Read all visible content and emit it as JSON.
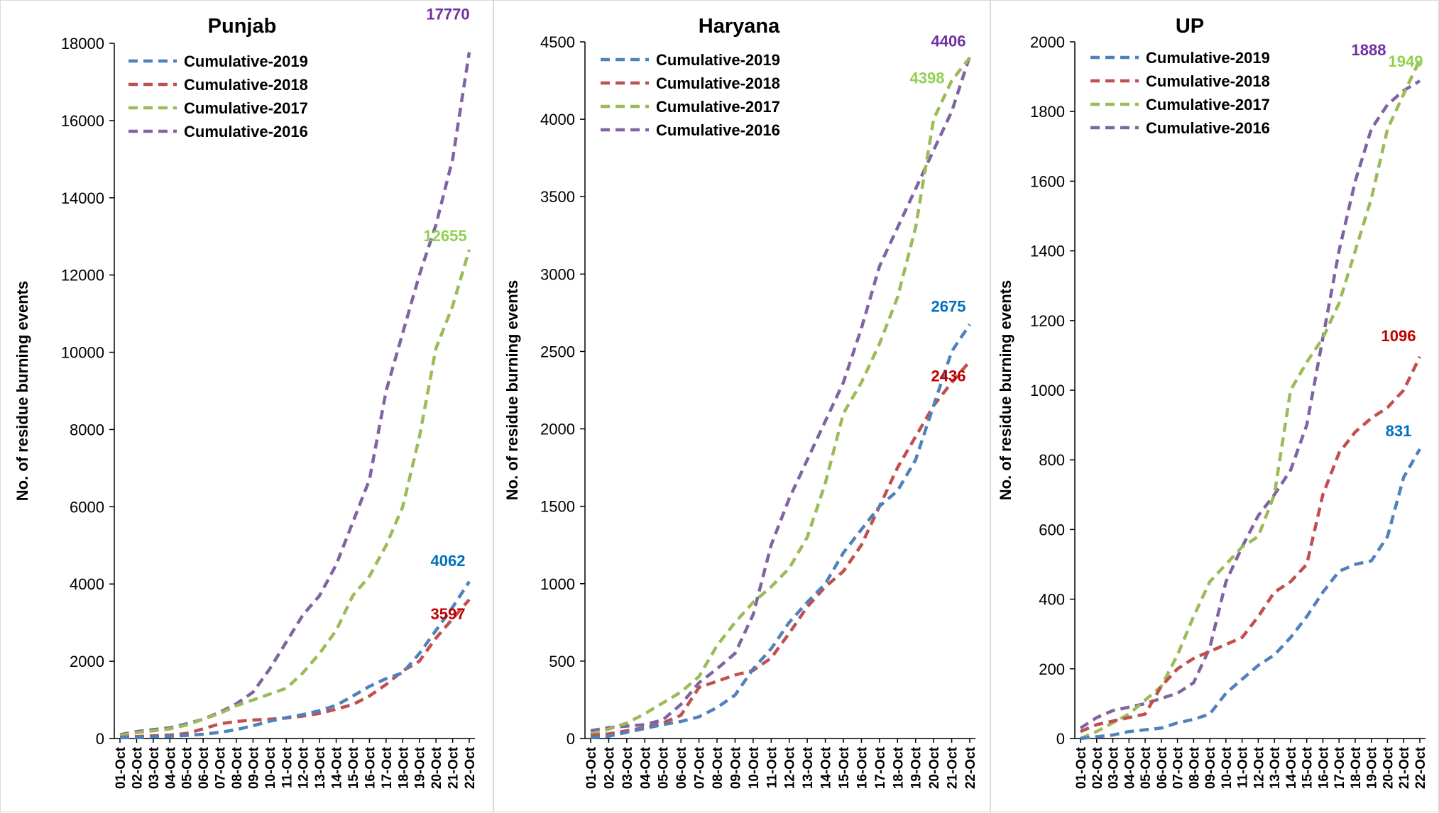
{
  "chart_data": [
    {
      "type": "line",
      "title": "Punjab",
      "ylabel": "No. of residue burning events",
      "ylim": [
        0,
        18000
      ],
      "yticks": [
        0,
        2000,
        4000,
        6000,
        8000,
        10000,
        12000,
        14000,
        16000,
        18000
      ],
      "categories": [
        "01-Oct",
        "02-Oct",
        "03-Oct",
        "04-Oct",
        "05-Oct",
        "06-Oct",
        "07-Oct",
        "08-Oct",
        "09-Oct",
        "10-Oct",
        "11-Oct",
        "12-Oct",
        "13-Oct",
        "14-Oct",
        "15-Oct",
        "16-Oct",
        "17-Oct",
        "18-Oct",
        "19-Oct",
        "20-Oct",
        "21-Oct",
        "22-Oct"
      ],
      "legend_position": "top-left",
      "series": [
        {
          "name": "Cumulative-2019",
          "color": "#4f81bd",
          "values": [
            20,
            30,
            45,
            60,
            80,
            110,
            160,
            230,
            330,
            450,
            540,
            620,
            720,
            860,
            1100,
            1350,
            1550,
            1700,
            2200,
            2800,
            3400,
            4062
          ],
          "end_label": "4062",
          "label_color": "#0070c0"
        },
        {
          "name": "Cumulative-2018",
          "color": "#c0504d",
          "values": [
            30,
            50,
            70,
            90,
            130,
            250,
            380,
            440,
            480,
            500,
            530,
            580,
            650,
            760,
            880,
            1100,
            1400,
            1750,
            2000,
            2600,
            3100,
            3597
          ],
          "end_label": "3597",
          "label_color": "#c00000"
        },
        {
          "name": "Cumulative-2017",
          "color": "#9bbb59",
          "values": [
            80,
            150,
            200,
            250,
            350,
            500,
            650,
            850,
            1000,
            1150,
            1300,
            1700,
            2200,
            2800,
            3700,
            4200,
            5000,
            6000,
            7800,
            10100,
            11200,
            12655
          ],
          "end_label": "12655",
          "label_color": "#92d050"
        },
        {
          "name": "Cumulative-2016",
          "color": "#8064a2",
          "values": [
            100,
            180,
            230,
            280,
            380,
            500,
            680,
            900,
            1200,
            1800,
            2500,
            3200,
            3700,
            4500,
            5600,
            6700,
            9000,
            10500,
            12000,
            13300,
            15000,
            17770
          ],
          "end_label": "17770",
          "label_color": "#7030a0"
        }
      ]
    },
    {
      "type": "line",
      "title": "Haryana",
      "ylabel": "No. of residue burning events",
      "ylim": [
        0,
        4500
      ],
      "yticks": [
        0,
        500,
        1000,
        1500,
        2000,
        2500,
        3000,
        3500,
        4000,
        4500
      ],
      "categories": [
        "01-Oct",
        "02-Oct",
        "03-Oct",
        "04-Oct",
        "05-Oct",
        "06-Oct",
        "07-Oct",
        "08-Oct",
        "09-Oct",
        "10-Oct",
        "11-Oct",
        "12-Oct",
        "13-Oct",
        "14-Oct",
        "15-Oct",
        "16-Oct",
        "17-Oct",
        "18-Oct",
        "19-Oct",
        "20-Oct",
        "21-Oct",
        "22-Oct"
      ],
      "legend_position": "top-left",
      "series": [
        {
          "name": "Cumulative-2019",
          "color": "#4f81bd",
          "values": [
            5,
            15,
            40,
            65,
            90,
            110,
            140,
            200,
            280,
            450,
            580,
            750,
            880,
            1000,
            1200,
            1350,
            1500,
            1600,
            1800,
            2150,
            2500,
            2675
          ],
          "end_label": "2675",
          "label_color": "#0070c0"
        },
        {
          "name": "Cumulative-2018",
          "color": "#c0504d",
          "values": [
            20,
            30,
            50,
            70,
            100,
            150,
            330,
            370,
            410,
            440,
            520,
            680,
            850,
            980,
            1080,
            1250,
            1500,
            1750,
            1950,
            2150,
            2300,
            2436
          ],
          "end_label": "2436",
          "label_color": "#c00000"
        },
        {
          "name": "Cumulative-2017",
          "color": "#9bbb59",
          "values": [
            30,
            60,
            100,
            160,
            230,
            300,
            400,
            600,
            750,
            880,
            980,
            1100,
            1300,
            1650,
            2100,
            2300,
            2550,
            2850,
            3300,
            4000,
            4250,
            4398
          ],
          "end_label": "4398",
          "label_color": "#92d050"
        },
        {
          "name": "Cumulative-2016",
          "color": "#8064a2",
          "values": [
            50,
            70,
            80,
            90,
            120,
            220,
            360,
            450,
            550,
            800,
            1250,
            1550,
            1800,
            2050,
            2300,
            2650,
            3050,
            3300,
            3550,
            3800,
            4050,
            4406
          ],
          "end_label": "4406",
          "label_color": "#7030a0"
        }
      ]
    },
    {
      "type": "line",
      "title": "UP",
      "ylabel": "No. of residue burning events",
      "ylim": [
        0,
        2000
      ],
      "yticks": [
        0,
        200,
        400,
        600,
        800,
        1000,
        1200,
        1400,
        1600,
        1800,
        2000
      ],
      "categories": [
        "01-Oct",
        "02-Oct",
        "03-Oct",
        "04-Oct",
        "05-Oct",
        "06-Oct",
        "07-Oct",
        "08-Oct",
        "09-Oct",
        "10-Oct",
        "11-Oct",
        "12-Oct",
        "13-Oct",
        "14-Oct",
        "15-Oct",
        "16-Oct",
        "17-Oct",
        "18-Oct",
        "19-Oct",
        "20-Oct",
        "21-Oct",
        "22-Oct"
      ],
      "legend_position": "top-left",
      "series": [
        {
          "name": "Cumulative-2019",
          "color": "#4f81bd",
          "values": [
            0,
            5,
            10,
            20,
            25,
            30,
            45,
            55,
            70,
            130,
            170,
            210,
            240,
            290,
            350,
            420,
            480,
            500,
            510,
            580,
            750,
            831
          ],
          "end_label": "831",
          "label_color": "#0070c0"
        },
        {
          "name": "Cumulative-2018",
          "color": "#c0504d",
          "values": [
            20,
            40,
            50,
            60,
            70,
            150,
            200,
            230,
            250,
            270,
            290,
            350,
            420,
            450,
            500,
            700,
            820,
            880,
            920,
            950,
            1000,
            1096
          ],
          "end_label": "1096",
          "label_color": "#c00000"
        },
        {
          "name": "Cumulative-2017",
          "color": "#9bbb59",
          "values": [
            0,
            20,
            45,
            70,
            110,
            150,
            240,
            350,
            450,
            500,
            550,
            580,
            700,
            1000,
            1080,
            1150,
            1250,
            1400,
            1550,
            1750,
            1850,
            1949
          ],
          "end_label": "1949",
          "label_color": "#92d050"
        },
        {
          "name": "Cumulative-2016",
          "color": "#8064a2",
          "values": [
            30,
            60,
            80,
            90,
            100,
            115,
            130,
            160,
            260,
            450,
            550,
            640,
            700,
            770,
            900,
            1150,
            1400,
            1600,
            1750,
            1820,
            1860,
            1888
          ],
          "end_label": "1888",
          "label_color": "#7030a0"
        }
      ]
    }
  ]
}
